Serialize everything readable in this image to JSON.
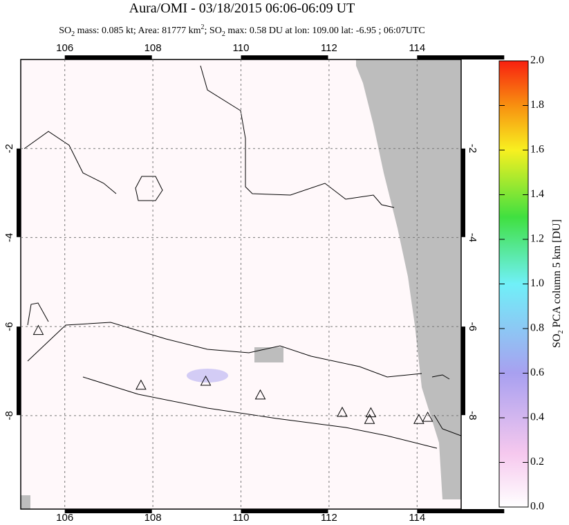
{
  "chart_data": {
    "type": "map",
    "title": "Aura/OMI - 03/18/2015 06:06-06:09 UT",
    "subtitle": [
      "SO",
      "2",
      " mass: 0.085 kt; Area: 81777 km",
      "2",
      "; SO",
      "2",
      " max: 0.58 DU at lon: 109.00 lat: -6.95 ; 06:07UTC"
    ],
    "xlim": [
      105.0,
      115.0
    ],
    "xticks": [
      106,
      108,
      110,
      112,
      114
    ],
    "ylim": [
      -10.1,
      0.0
    ],
    "yticks": [
      -2,
      -4,
      -6,
      -8
    ],
    "grid": true,
    "volcanoes": {
      "lon": [
        105.4,
        107.73,
        109.2,
        110.44,
        112.3,
        112.95,
        112.92,
        114.04,
        114.24
      ],
      "lat": [
        -6.1,
        -7.33,
        -7.24,
        -7.55,
        -7.94,
        -7.95,
        -8.1,
        -8.1,
        -8.05
      ]
    },
    "colorbar": {
      "label": [
        "SO",
        "2",
        " PCA column 5 km [DU]"
      ],
      "lim": [
        0,
        2.0
      ],
      "ticks": [
        {
          "value": 0,
          "label": "0.0"
        },
        {
          "value": 0.2,
          "label": "0.2"
        },
        {
          "value": 0.4,
          "label": "0.4"
        },
        {
          "value": 0.6,
          "label": "0.6"
        },
        {
          "value": 0.8,
          "label": "0.8"
        },
        {
          "value": 1.0,
          "label": "1.0"
        },
        {
          "value": 1.2,
          "label": "1.2"
        },
        {
          "value": 1.4,
          "label": "1.4"
        },
        {
          "value": 1.6,
          "label": "1.6"
        },
        {
          "value": 1.8,
          "label": "1.8"
        },
        {
          "value": 2.0,
          "label": "2.0"
        }
      ]
    }
  }
}
